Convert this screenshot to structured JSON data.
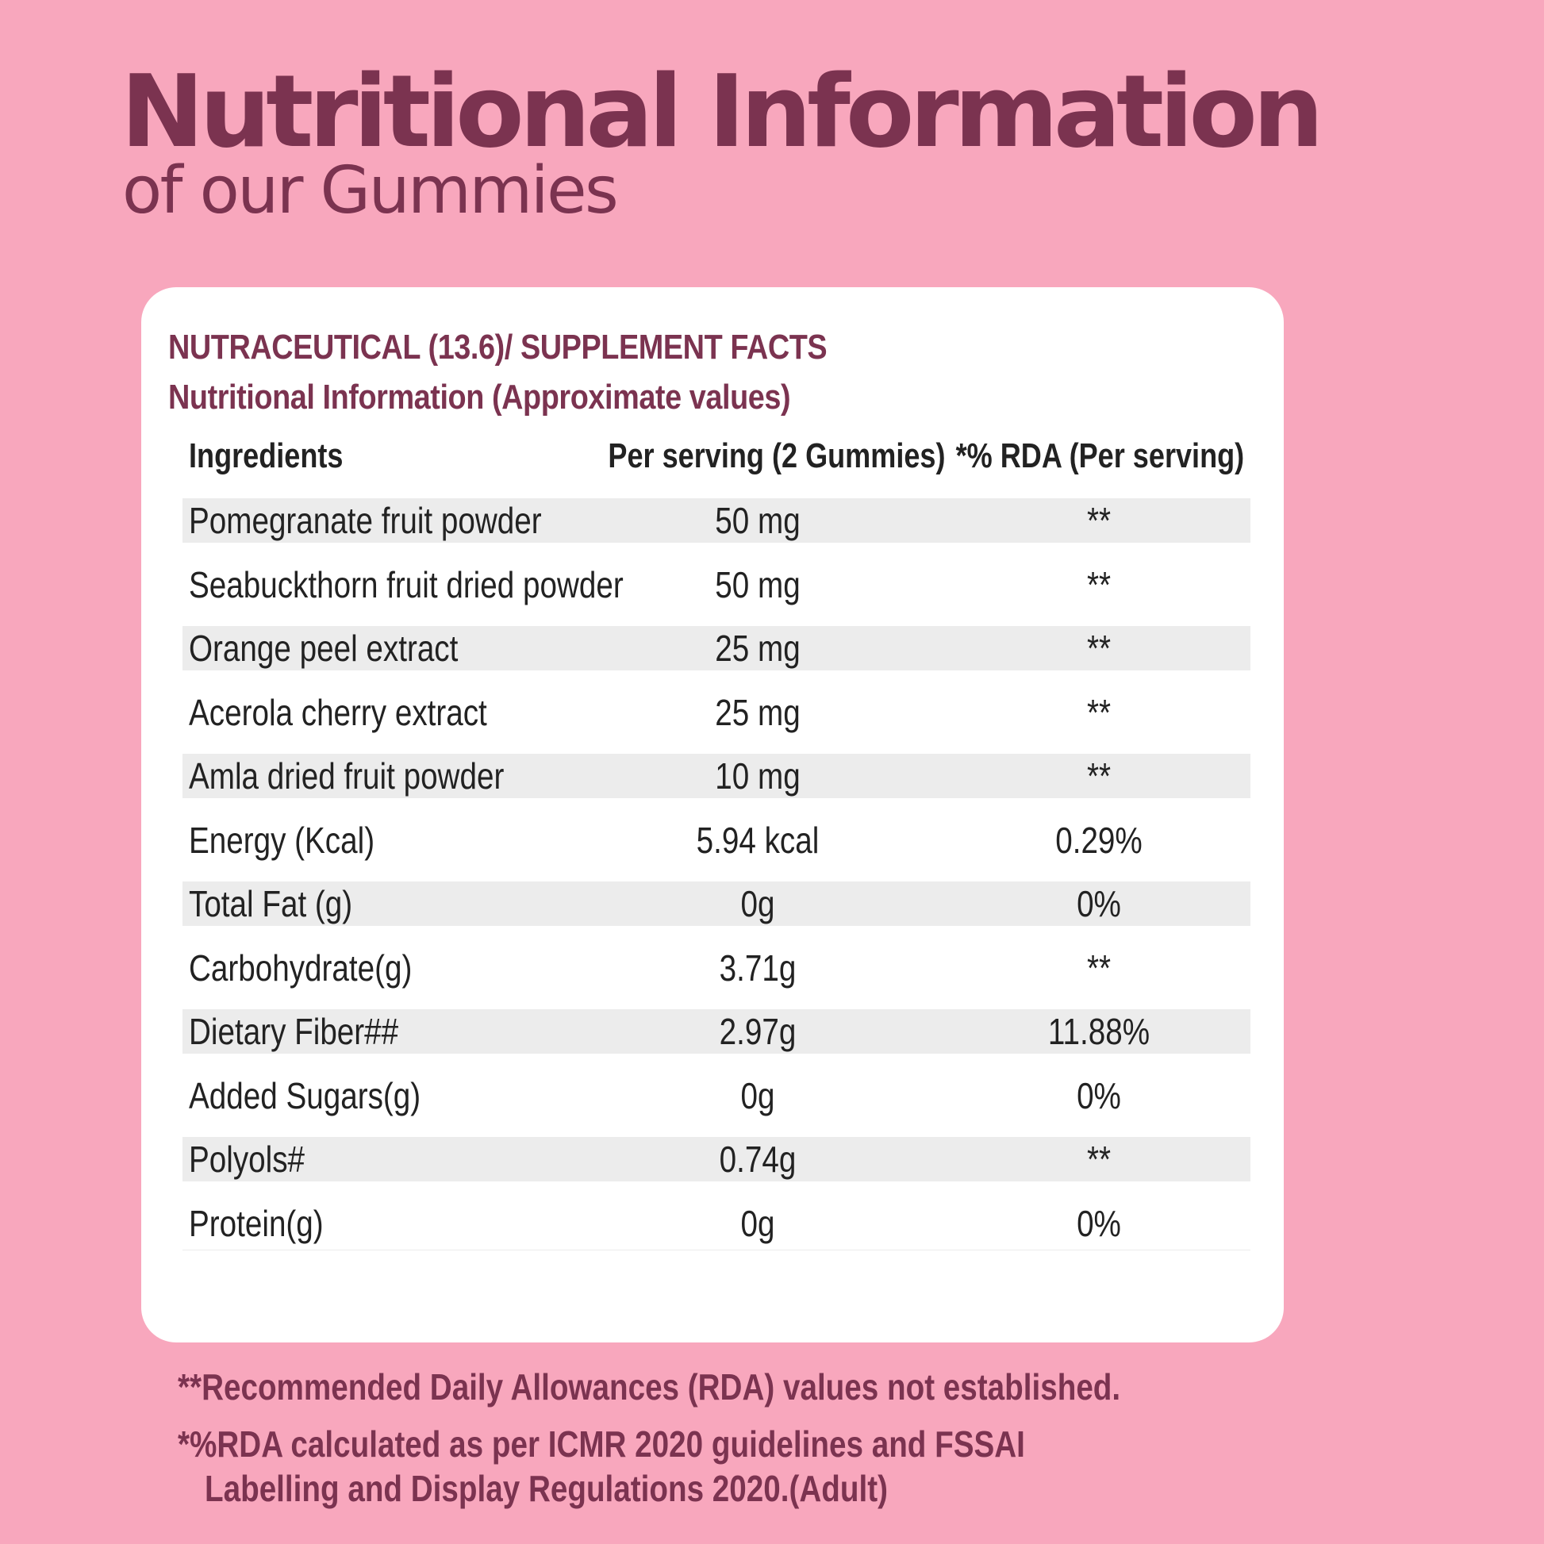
{
  "header": {
    "title": "Nutritional Information",
    "subtitle": "of our Gummies"
  },
  "card": {
    "heading": "NUTRACEUTICAL (13.6)/ SUPPLEMENT FACTS",
    "subheading": "Nutritional Information (Approximate values)",
    "columns": [
      "Ingredients",
      "Per serving (2 Gummies)",
      "*% RDA (Per serving)"
    ],
    "rows": [
      {
        "ingredient": "Pomegranate fruit powder",
        "per_serving": "50 mg",
        "rda": "**"
      },
      {
        "ingredient": "Seabuckthorn fruit dried powder",
        "per_serving": "50 mg",
        "rda": "**"
      },
      {
        "ingredient": "Orange peel extract",
        "per_serving": "25 mg",
        "rda": "**"
      },
      {
        "ingredient": "Acerola cherry extract",
        "per_serving": "25 mg",
        "rda": "**"
      },
      {
        "ingredient": "Amla dried fruit powder",
        "per_serving": "10 mg",
        "rda": "**"
      },
      {
        "ingredient": "Energy (Kcal)",
        "per_serving": "5.94 kcal",
        "rda": "0.29%"
      },
      {
        "ingredient": "Total Fat (g)",
        "per_serving": "0g",
        "rda": "0%"
      },
      {
        "ingredient": "Carbohydrate(g)",
        "per_serving": "3.71g",
        "rda": "**"
      },
      {
        "ingredient": "Dietary Fiber##",
        "per_serving": "2.97g",
        "rda": "11.88%"
      },
      {
        "ingredient": "Added Sugars(g)",
        "per_serving": "0g",
        "rda": "0%"
      },
      {
        "ingredient": "Polyols#",
        "per_serving": "0.74g",
        "rda": "**"
      },
      {
        "ingredient": "Protein(g)",
        "per_serving": "0g",
        "rda": "0%"
      }
    ]
  },
  "footnotes": {
    "rda_not_established": "**Recommended Daily Allowances (RDA) values not established.",
    "rda_calc_line1": "*%RDA calculated as per ICMR 2020 guidelines and FSSAI",
    "rda_calc_line2": "Labelling and Display Regulations 2020.(Adult)"
  },
  "colors": {
    "background": "#f8a7bd",
    "accent": "#7b3350",
    "card": "#ffffff",
    "row_shade": "#ececec"
  }
}
